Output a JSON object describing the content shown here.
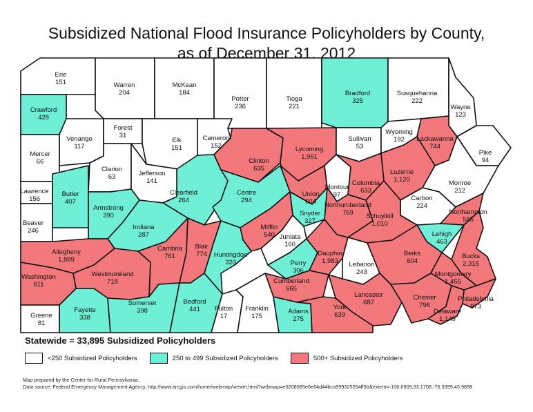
{
  "title": {
    "line1": "Subsidized National Flood Insurance Policyholders by County,",
    "line2": "as of December 31, 2012"
  },
  "colors": {
    "low": "#ffffff",
    "mid": "#6ff0d6",
    "high": "#f2787b",
    "border": "#111111"
  },
  "statewide": "Statewide = 33,895 Subsidized Policyholders",
  "legend": [
    {
      "category": "low",
      "label": "<250 Subsidized Policyholders"
    },
    {
      "category": "mid",
      "label": "250 to 499 Subsidized Policyholders"
    },
    {
      "category": "high",
      "label": "500+ Subsidized Policyholders"
    }
  ],
  "counties": [
    {
      "name": "Erie",
      "value": "151",
      "category": "low"
    },
    {
      "name": "Crawford",
      "value": "428",
      "category": "mid"
    },
    {
      "name": "Warren",
      "value": "204",
      "category": "low"
    },
    {
      "name": "McKean",
      "value": "184",
      "category": "low"
    },
    {
      "name": "Potter",
      "value": "236",
      "category": "low"
    },
    {
      "name": "Tioga",
      "value": "221",
      "category": "low"
    },
    {
      "name": "Bradford",
      "value": "325",
      "category": "mid"
    },
    {
      "name": "Susquehanna",
      "value": "222",
      "category": "low"
    },
    {
      "name": "Wayne",
      "value": "123",
      "category": "low"
    },
    {
      "name": "Mercer",
      "value": "66",
      "category": "low"
    },
    {
      "name": "Venango",
      "value": "117",
      "category": "low"
    },
    {
      "name": "Forest",
      "value": "31",
      "category": "low"
    },
    {
      "name": "Elk",
      "value": "151",
      "category": "low"
    },
    {
      "name": "Cameron",
      "value": "152",
      "category": "low"
    },
    {
      "name": "Clinton",
      "value": "635",
      "category": "high"
    },
    {
      "name": "Lycoming",
      "value": "1,961",
      "category": "high"
    },
    {
      "name": "Sullivan",
      "value": "53",
      "category": "low"
    },
    {
      "name": "Wyoming",
      "value": "192",
      "category": "low"
    },
    {
      "name": "Lackawanna",
      "value": "744",
      "category": "high"
    },
    {
      "name": "Pike",
      "value": "94",
      "category": "low"
    },
    {
      "name": "Lawrence",
      "value": "156",
      "category": "low"
    },
    {
      "name": "Butler",
      "value": "407",
      "category": "mid"
    },
    {
      "name": "Clarion",
      "value": "63",
      "category": "low"
    },
    {
      "name": "Jefferson",
      "value": "141",
      "category": "low"
    },
    {
      "name": "Clearfield",
      "value": "264",
      "category": "mid"
    },
    {
      "name": "Centre",
      "value": "294",
      "category": "mid"
    },
    {
      "name": "Union",
      "value": "604",
      "category": "high"
    },
    {
      "name": "Montour",
      "value": "97",
      "category": "low"
    },
    {
      "name": "Columbia",
      "value": "633",
      "category": "high"
    },
    {
      "name": "Luzerne",
      "value": "1,120",
      "category": "high"
    },
    {
      "name": "Monroe",
      "value": "212",
      "category": "low"
    },
    {
      "name": "Beaver",
      "value": "246",
      "category": "low"
    },
    {
      "name": "Armstrong",
      "value": "390",
      "category": "mid"
    },
    {
      "name": "Indiana",
      "value": "287",
      "category": "mid"
    },
    {
      "name": "Snyder",
      "value": "327",
      "category": "mid"
    },
    {
      "name": "Northumberland",
      "value": "769",
      "category": "high"
    },
    {
      "name": "Carbon",
      "value": "224",
      "category": "low"
    },
    {
      "name": "Northampton",
      "value": "585",
      "category": "high"
    },
    {
      "name": "Schuylkill",
      "value": "1,010",
      "category": "high"
    },
    {
      "name": "Lehigh",
      "value": "463",
      "category": "mid"
    },
    {
      "name": "Mifflin",
      "value": "540",
      "category": "high"
    },
    {
      "name": "Juniata",
      "value": "160",
      "category": "low"
    },
    {
      "name": "Allegheny",
      "value": "1,889",
      "category": "high"
    },
    {
      "name": "Westmoreland",
      "value": "718",
      "category": "high"
    },
    {
      "name": "Cambria",
      "value": "761",
      "category": "high"
    },
    {
      "name": "Blair",
      "value": "774",
      "category": "high"
    },
    {
      "name": "Huntingdon",
      "value": "320",
      "category": "mid"
    },
    {
      "name": "Perry",
      "value": "306",
      "category": "mid"
    },
    {
      "name": "Dauphin",
      "value": "1,983",
      "category": "high"
    },
    {
      "name": "Lebanon",
      "value": "243",
      "category": "low"
    },
    {
      "name": "Berks",
      "value": "604",
      "category": "high"
    },
    {
      "name": "Bucks",
      "value": "2,315",
      "category": "high"
    },
    {
      "name": "Montgomery",
      "value": "1,455",
      "category": "high"
    },
    {
      "name": "Washington",
      "value": "611",
      "category": "high"
    },
    {
      "name": "Cumberland",
      "value": "665",
      "category": "high"
    },
    {
      "name": "Lancaster",
      "value": "687",
      "category": "high"
    },
    {
      "name": "Chester",
      "value": "796",
      "category": "high"
    },
    {
      "name": "Philadelphia",
      "value": "973",
      "category": "high"
    },
    {
      "name": "Delaware",
      "value": "1,149",
      "category": "high"
    },
    {
      "name": "Greene",
      "value": "81",
      "category": "low"
    },
    {
      "name": "Fayette",
      "value": "338",
      "category": "mid"
    },
    {
      "name": "Somerset",
      "value": "398",
      "category": "mid"
    },
    {
      "name": "Bedford",
      "value": "441",
      "category": "mid"
    },
    {
      "name": "Fulton",
      "value": "17",
      "category": "low"
    },
    {
      "name": "Franklin",
      "value": "175",
      "category": "low"
    },
    {
      "name": "Adams",
      "value": "275",
      "category": "mid"
    },
    {
      "name": "York",
      "value": "639",
      "category": "high"
    }
  ],
  "credits": {
    "line1": "Map prepared by the Center for Rural Pennsylvania.",
    "line2": "Data source: Federal Emergency Management Agency, http://www.arcgis.com/home/webmap/viewer.html?webmap=e0208985e8e64d44bca999325254ff5b&extent=-106.6909,33.1708,-76.9399,43.9898"
  }
}
